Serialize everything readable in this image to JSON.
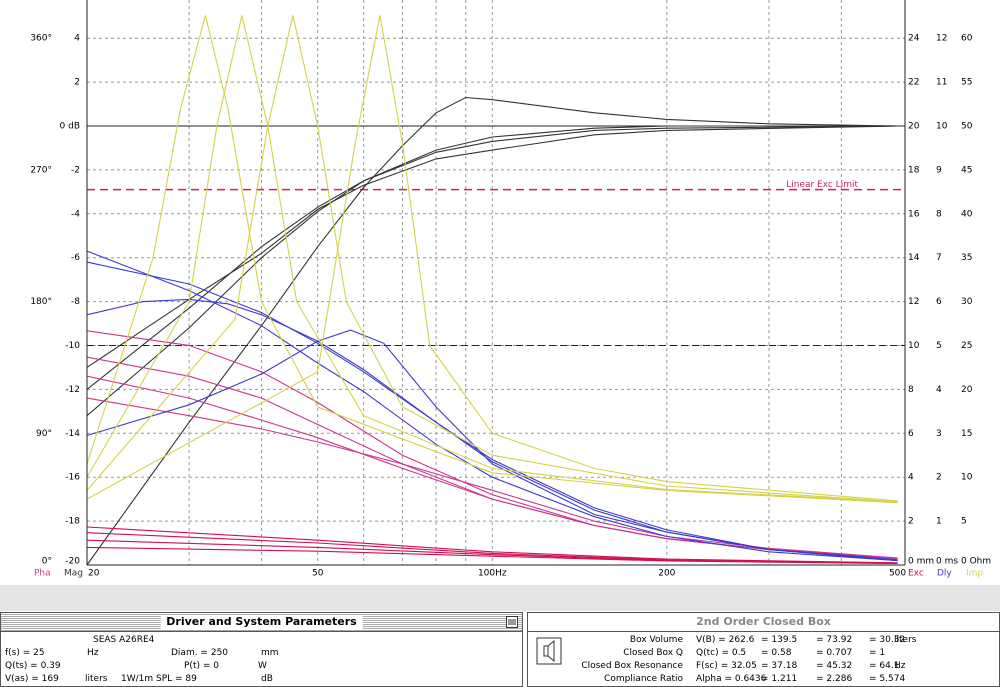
{
  "chart_data": {
    "type": "line",
    "log_x": true,
    "xlim": [
      20,
      515
    ],
    "xticks": [
      20,
      50,
      {
        "value": 100,
        "label": "100Hz"
      },
      200,
      500
    ],
    "xgrid": [
      30,
      40,
      50,
      60,
      70,
      80,
      90,
      100,
      200,
      300,
      400
    ],
    "ylim": [
      -20,
      5.74
    ],
    "yticks": [
      -20,
      -18,
      -16,
      -14,
      -12,
      -10,
      -8,
      -6,
      -4,
      -2,
      {
        "value": 0,
        "label": "0 dB"
      },
      2,
      4
    ],
    "grid": true,
    "ref_lines": [
      0,
      -10
    ],
    "axes": {
      "pha": {
        "lim": [
          0,
          386
        ],
        "ticks": [
          {
            "value": 0,
            "label": "0°"
          },
          {
            "value": 90,
            "label": "90°"
          },
          {
            "value": 180,
            "label": "180°"
          },
          {
            "value": 270,
            "label": "270°"
          },
          {
            "value": 360,
            "label": "360°"
          }
        ]
      },
      "exc": {
        "lim": [
          0,
          25.74
        ],
        "ticks": [
          {
            "value": 0,
            "label": "0 mm"
          },
          2,
          4,
          6,
          8,
          10,
          12,
          14,
          16,
          18,
          20,
          22,
          24
        ]
      },
      "dly": {
        "lim": [
          0,
          12.87
        ],
        "ticks": [
          {
            "value": 0,
            "label": "0 ms"
          },
          1,
          2,
          3,
          4,
          5,
          6,
          7,
          8,
          9,
          10,
          11,
          12
        ]
      },
      "imp": {
        "lim": [
          0,
          64.35
        ],
        "ticks": [
          {
            "value": 0,
            "label": "0 Ohm"
          },
          5,
          10,
          15,
          20,
          25,
          30,
          35,
          40,
          45,
          50,
          55,
          60
        ]
      }
    },
    "exc_limit": {
      "value": 17.1,
      "label": "Linear Exc Limit",
      "color": "#cc2266"
    },
    "groups": [
      {
        "name": "Mag",
        "color": "#333333",
        "axis": "y",
        "curves": [
          {
            "x": [
              20,
              30,
              40,
              50,
              60,
              80,
              100,
              150,
              200,
              500
            ],
            "values": [
              -11,
              -7.9,
              -5.8,
              -3.8,
              -2.7,
              -1.5,
              -1.1,
              -0.4,
              -0.2,
              0
            ]
          },
          {
            "x": [
              20,
              30,
              40,
              50,
              60,
              80,
              100,
              150,
              200,
              500
            ],
            "values": [
              -12,
              -8.3,
              -5.5,
              -3.7,
              -2.5,
              -1.2,
              -0.7,
              -0.2,
              -0.1,
              0
            ]
          },
          {
            "x": [
              20,
              30,
              40,
              50,
              60,
              80,
              100,
              150,
              200,
              500
            ],
            "values": [
              -13.2,
              -9.2,
              -6,
              -3.9,
              -2.5,
              -1.1,
              -0.5,
              -0.1,
              0,
              0
            ]
          },
          {
            "x": [
              20,
              30,
              40,
              50,
              60,
              70,
              80,
              90,
              100,
              150,
              200,
              300,
              500
            ],
            "values": [
              -20,
              -13.5,
              -9.1,
              -5.5,
              -2.8,
              -0.9,
              0.6,
              1.3,
              1.2,
              0.6,
              0.3,
              0.1,
              0
            ]
          }
        ]
      },
      {
        "name": "Pha",
        "color": "#c8378f",
        "axis": "pha",
        "curves": [
          {
            "x": [
              20,
              30,
              40,
              50,
              70,
              100,
              150,
              200,
              300,
              500
            ],
            "values": [
              160,
              150,
              132,
              111,
              75,
              48,
              27,
              18,
              10.5,
              4.5
            ]
          },
          {
            "x": [
              20,
              30,
              40,
              50,
              70,
              100,
              150,
              200,
              300,
              500
            ],
            "values": [
              142,
              129,
              114,
              96,
              69,
              45,
              27,
              18,
              10.5,
              4.5
            ]
          },
          {
            "x": [
              20,
              30,
              40,
              50,
              70,
              100,
              150,
              200,
              300,
              500
            ],
            "values": [
              129,
              114,
              99,
              87,
              66,
              45,
              27,
              18,
              10.5,
              4.5
            ]
          },
          {
            "x": [
              20,
              30,
              40,
              50,
              70,
              100,
              150,
              200,
              300,
              500
            ],
            "values": [
              114,
              102,
              93,
              84,
              69,
              51,
              30,
              19.5,
              11.4,
              4.8
            ]
          }
        ]
      },
      {
        "name": "Exc",
        "color": "#d01050",
        "axis": "exc",
        "curves": [
          {
            "x": [
              20,
              50,
              100,
              200,
              500
            ],
            "values": [
              1.73,
              1.13,
              0.6,
              0.27,
              0.1
            ]
          },
          {
            "x": [
              20,
              50,
              100,
              200,
              500
            ],
            "values": [
              1.47,
              1.0,
              0.53,
              0.23,
              0.09
            ]
          },
          {
            "x": [
              20,
              50,
              100,
              200,
              500
            ],
            "values": [
              1.13,
              0.8,
              0.47,
              0.2,
              0.08
            ]
          },
          {
            "x": [
              20,
              50,
              100,
              200,
              500
            ],
            "values": [
              0.8,
              0.63,
              0.4,
              0.18,
              0.07
            ]
          }
        ]
      },
      {
        "name": "Dly",
        "color": "#3a3ad0",
        "axis": "dly",
        "curves": [
          {
            "x": [
              20,
              30,
              40,
              50,
              60,
              80,
              100,
              150,
              200,
              300,
              500
            ],
            "values": [
              7.15,
              6.25,
              5.45,
              4.6,
              3.95,
              2.75,
              2,
              1.1,
              0.65,
              0.3,
              0.1
            ]
          },
          {
            "x": [
              20,
              30,
              40,
              50,
              60,
              80,
              100,
              150,
              200,
              300,
              500
            ],
            "values": [
              6.9,
              6.4,
              5.75,
              5.05,
              4.4,
              3.25,
              2.4,
              1.3,
              0.8,
              0.35,
              0.1
            ]
          },
          {
            "x": [
              20,
              25,
              30,
              35,
              40,
              50,
              60,
              80,
              100,
              150,
              200,
              300,
              500
            ],
            "values": [
              5.7,
              6.0,
              6.05,
              5.95,
              5.7,
              5.1,
              4.45,
              3.25,
              2.35,
              1.25,
              0.75,
              0.35,
              0.1
            ]
          },
          {
            "x": [
              20,
              30,
              40,
              50,
              57,
              65,
              80,
              100,
              150,
              200,
              300,
              500
            ],
            "values": [
              2.95,
              3.65,
              4.35,
              5.1,
              5.35,
              5.05,
              3.6,
              2.3,
              1.15,
              0.75,
              0.35,
              0.12
            ]
          }
        ]
      },
      {
        "name": "Imp",
        "color": "#d6d24a",
        "axis": "imp",
        "curves": [
          {
            "x": [
              20,
              26,
              29,
              32,
              35,
              40,
              50,
              100,
              200,
              500
            ],
            "values": [
              11.5,
              35,
              52,
              62.6,
              52,
              30,
              18,
              10.5,
              8.5,
              7.1
            ]
          },
          {
            "x": [
              20,
              30,
              33.5,
              37,
              41,
              46,
              60,
              100,
              200,
              500
            ],
            "values": [
              10,
              30,
              50,
              62.6,
              50,
              30,
              17,
              11,
              8.6,
              7.2
            ]
          },
          {
            "x": [
              20,
              36,
              41,
              45.3,
              50,
              56,
              70,
              100,
              200,
              500
            ],
            "values": [
              8.5,
              28,
              50,
              62.6,
              50,
              30,
              18,
              12.5,
              9,
              7.2
            ]
          },
          {
            "x": [
              20,
              50,
              58,
              64,
              70,
              78,
              100,
              150,
              200,
              500
            ],
            "values": [
              7.5,
              22,
              48,
              62.6,
              48,
              25,
              15,
              11,
              9.5,
              7.3
            ]
          }
        ]
      }
    ]
  },
  "driver_panel": {
    "title": "Driver and System Parameters",
    "model": "SEAS  A26RE4",
    "rows": [
      [
        "f(s) = 25",
        "Hz",
        "Diam. = 250",
        "mm"
      ],
      [
        "Q(ts) = 0.39",
        "P(t) = 0",
        "W"
      ],
      [
        "V(as) = 169",
        "liters",
        "1W/1m SPL = 89",
        "dB"
      ]
    ]
  },
  "box_panel": {
    "title": "2nd Order Closed Box",
    "rows": [
      [
        "Box Volume",
        "V(B) = 262.6",
        "= 139.5",
        "= 73.92",
        "= 30.32",
        "liters"
      ],
      [
        "Closed Box Q",
        "Q(tc) = 0.5",
        "= 0.58",
        "= 0.707",
        "= 1"
      ],
      [
        "Closed Box Resonance",
        "F(sc) = 32.05",
        "= 37.18",
        "= 45.32",
        "= 64.1",
        "Hz"
      ],
      [
        "Compliance Ratio",
        "Alpha = 0.6436",
        "= 1.211",
        "= 2.286",
        "= 5.574"
      ]
    ]
  }
}
